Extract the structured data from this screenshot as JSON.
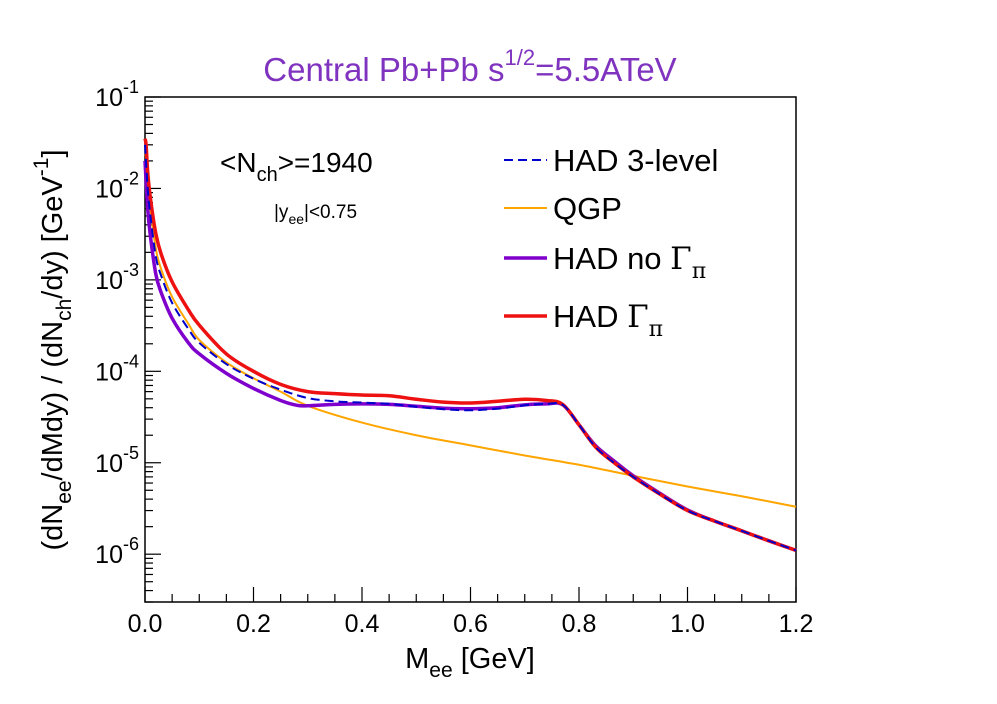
{
  "chart_data": {
    "type": "line",
    "title": {
      "main": "Central Pb+Pb  s",
      "sup": "1/2",
      "tail": "=5.5ATeV"
    },
    "xlabel": {
      "main": "M",
      "sub": "ee",
      "tail": " [GeV]"
    },
    "ylabel": {
      "p1": "(dN",
      "s1": "ee",
      "p2": "/dMdy) / (dN",
      "s2": "ch",
      "p3": "/dy)  [GeV",
      "sup": "-1",
      "p4": "]"
    },
    "xlim": [
      0.0,
      1.2
    ],
    "ylim": [
      3e-07,
      0.1
    ],
    "yscale": "log",
    "x_ticks": [
      "0.0",
      "0.2",
      "0.4",
      "0.6",
      "0.8",
      "1.0",
      "1.2"
    ],
    "y_ticks": [
      {
        "base": "10",
        "exp": "-1"
      },
      {
        "base": "10",
        "exp": "-2"
      },
      {
        "base": "10",
        "exp": "-3"
      },
      {
        "base": "10",
        "exp": "-4"
      },
      {
        "base": "10",
        "exp": "-5"
      },
      {
        "base": "10",
        "exp": "-6"
      }
    ],
    "annotations": {
      "nch": {
        "p1": "<N",
        "sub": "ch",
        "p2": ">=1940"
      },
      "rapidity": {
        "p1": "|y",
        "sub": "ee",
        "p2": "|<0.75"
      }
    },
    "legend_position": "top-right",
    "colors": {
      "title": "#7f33bf",
      "had3": "#0000cc",
      "qgp": "#ffa500",
      "nogamma": "#7f00cc",
      "gamma": "#ee1111"
    },
    "series": [
      {
        "name": "HAD 3-level",
        "legend": {
          "main": "HAD 3-level",
          "greek": "",
          "sub": ""
        },
        "style": "dashed",
        "color": "#0000cc",
        "x": [
          0.0,
          0.005,
          0.01,
          0.02,
          0.03,
          0.05,
          0.08,
          0.1,
          0.15,
          0.2,
          0.25,
          0.3,
          0.35,
          0.4,
          0.45,
          0.5,
          0.55,
          0.6,
          0.65,
          0.7,
          0.74,
          0.77,
          0.8,
          0.83,
          0.86,
          0.9,
          0.95,
          1.0,
          1.05,
          1.1,
          1.15,
          1.2
        ],
        "y": [
          0.03,
          0.01,
          0.005,
          0.0018,
          0.0011,
          0.00056,
          0.00029,
          0.000205,
          0.00012,
          8.3e-05,
          6.3e-05,
          5.1e-05,
          4.7e-05,
          4.55e-05,
          4.4e-05,
          4.1e-05,
          3.85e-05,
          3.75e-05,
          3.9e-05,
          4.25e-05,
          4.4e-05,
          4.3e-05,
          2.6e-05,
          1.5e-05,
          1.05e-05,
          7e-06,
          4.5e-06,
          3e-06,
          2.3e-06,
          1.8e-06,
          1.4e-06,
          1.1e-06
        ]
      },
      {
        "name": "QGP",
        "legend": {
          "main": "QGP",
          "greek": "",
          "sub": ""
        },
        "style": "solid",
        "color": "#ffa500",
        "x": [
          0.0,
          0.005,
          0.01,
          0.02,
          0.03,
          0.05,
          0.08,
          0.1,
          0.15,
          0.2,
          0.25,
          0.3,
          0.4,
          0.5,
          0.6,
          0.7,
          0.8,
          0.9,
          1.0,
          1.1,
          1.2
        ],
        "y": [
          0.03,
          0.012,
          0.006,
          0.0022,
          0.0013,
          0.00065,
          0.00033,
          0.00022,
          0.000125,
          8.4e-05,
          6e-05,
          4.2e-05,
          2.75e-05,
          2e-05,
          1.55e-05,
          1.2e-05,
          9.5e-06,
          7.2e-06,
          5.5e-06,
          4.3e-06,
          3.3e-06
        ]
      },
      {
        "name": "HAD no Γπ",
        "legend": {
          "main": "HAD no ",
          "greek": "Γ",
          "sub": "π"
        },
        "style": "solid",
        "color": "#7f00cc",
        "x": [
          0.0,
          0.005,
          0.01,
          0.02,
          0.03,
          0.05,
          0.08,
          0.1,
          0.15,
          0.2,
          0.25,
          0.28,
          0.3,
          0.35,
          0.4,
          0.45,
          0.5,
          0.55,
          0.6,
          0.65,
          0.7,
          0.74,
          0.77,
          0.8,
          0.83,
          0.86,
          0.9,
          0.95,
          1.0,
          1.05,
          1.1,
          1.15,
          1.2
        ],
        "y": [
          0.02,
          0.006,
          0.003,
          0.00115,
          0.00072,
          0.00038,
          0.000205,
          0.000155,
          9.5e-05,
          6.5e-05,
          4.8e-05,
          4.25e-05,
          4.2e-05,
          4.35e-05,
          4.4e-05,
          4.35e-05,
          4.15e-05,
          3.95e-05,
          3.9e-05,
          4e-05,
          4.3e-05,
          4.4e-05,
          4.3e-05,
          2.6e-05,
          1.55e-05,
          1.1e-05,
          7.2e-06,
          4.6e-06,
          3.05e-06,
          2.3e-06,
          1.8e-06,
          1.4e-06,
          1.1e-06
        ]
      },
      {
        "name": "HAD Γπ",
        "legend": {
          "main": "HAD ",
          "greek": "Γ",
          "sub": "π"
        },
        "style": "solid",
        "color": "#ee1111",
        "x": [
          0.0,
          0.002,
          0.005,
          0.01,
          0.02,
          0.03,
          0.05,
          0.08,
          0.1,
          0.15,
          0.2,
          0.25,
          0.3,
          0.35,
          0.4,
          0.45,
          0.5,
          0.55,
          0.6,
          0.65,
          0.7,
          0.74,
          0.77,
          0.8,
          0.83,
          0.86,
          0.9,
          0.95,
          1.0,
          1.05,
          1.1,
          1.15,
          1.2
        ],
        "y": [
          0.035,
          0.03,
          0.015,
          0.0078,
          0.0032,
          0.0019,
          0.00095,
          0.00047,
          0.00032,
          0.000155,
          0.0001,
          7.2e-05,
          6e-05,
          5.7e-05,
          5.5e-05,
          5.4e-05,
          4.95e-05,
          4.6e-05,
          4.5e-05,
          4.7e-05,
          4.95e-05,
          4.8e-05,
          4.35e-05,
          2.6e-05,
          1.5e-05,
          1.05e-05,
          7e-06,
          4.5e-06,
          3e-06,
          2.3e-06,
          1.8e-06,
          1.4e-06,
          1.1e-06
        ]
      }
    ]
  }
}
